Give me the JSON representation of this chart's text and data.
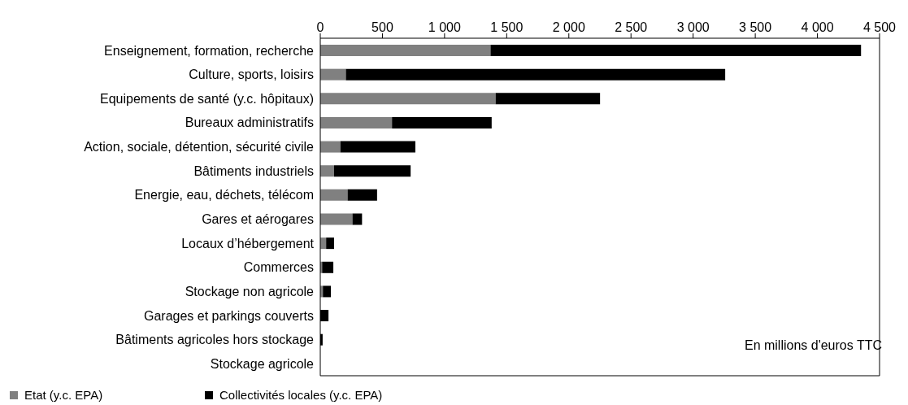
{
  "chart_data": {
    "type": "bar",
    "orientation": "horizontal",
    "stacked": true,
    "categories": [
      "Enseignement, formation, recherche",
      "Culture, sports, loisirs",
      "Equipements de santé (y.c. hôpitaux)",
      "Bureaux administratifs",
      "Action, sociale, détention, sécurité civile",
      "Bâtiments industriels",
      "Energie, eau, déchets, télécom",
      "Gares et aérogares",
      "Locaux d’hébergement",
      "Commerces",
      "Stockage non agricole",
      "Garages et parkings couverts",
      "Bâtiments agricoles hors stockage",
      "Stockage agricole"
    ],
    "series": [
      {
        "name": "Etat (y.c. EPA)",
        "color": "#808080",
        "values": [
          1370,
          206,
          1411,
          577,
          162,
          111,
          220,
          259,
          47,
          15,
          21,
          null,
          null,
          null
        ]
      },
      {
        "name": "Collectivités locales (y.c. EPA)",
        "color": "#000000",
        "values": [
          2981,
          3052,
          840,
          802,
          603,
          616,
          237,
          77,
          64,
          90,
          64,
          66,
          19,
          0
        ]
      }
    ],
    "xlim": [
      0,
      4500
    ],
    "xticks": [
      0,
      {
        "value": 500,
        "label": "500"
      },
      {
        "value": 1000,
        "label": "1 000"
      },
      {
        "value": 1500,
        "label": "1 500"
      },
      {
        "value": 2000,
        "label": "2 000"
      },
      {
        "value": 2500,
        "label": "2 500"
      },
      {
        "value": 3000,
        "label": "3 000"
      },
      {
        "value": 3500,
        "label": "3 500"
      },
      {
        "value": 4000,
        "label": "4 000"
      },
      {
        "value": 4500,
        "label": "4 500"
      }
    ],
    "annotations": [
      "En millions d'euros TTC"
    ],
    "legend": "bottom left",
    "grid": false
  }
}
